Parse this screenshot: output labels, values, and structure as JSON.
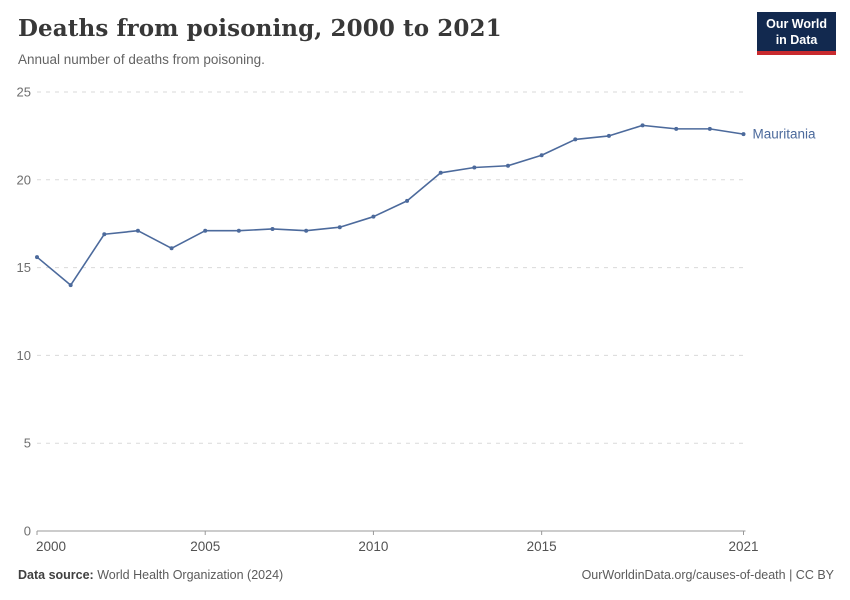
{
  "header": {
    "title": "Deaths from poisoning, 2000 to 2021",
    "subtitle": "Annual number of deaths from poisoning."
  },
  "logo": {
    "line1": "Our World",
    "line2": "in Data",
    "bg_color": "#12294F",
    "accent_color": "#C82A2E"
  },
  "chart_data": {
    "type": "line",
    "title": "Deaths from poisoning, 2000 to 2021",
    "xlabel": "",
    "ylabel": "",
    "x": [
      2000,
      2001,
      2002,
      2003,
      2004,
      2005,
      2006,
      2007,
      2008,
      2009,
      2010,
      2011,
      2012,
      2013,
      2014,
      2015,
      2016,
      2017,
      2018,
      2019,
      2020,
      2021
    ],
    "series": [
      {
        "name": "Mauritania",
        "color": "#4C6A9C",
        "values": [
          15.6,
          14.0,
          16.9,
          17.1,
          16.1,
          17.1,
          17.1,
          17.2,
          17.1,
          17.3,
          17.9,
          18.8,
          20.4,
          20.7,
          20.8,
          21.4,
          22.3,
          22.5,
          23.1,
          22.9,
          22.9,
          22.6
        ]
      }
    ],
    "ylim": [
      0,
      25
    ],
    "yticks": [
      0,
      5,
      10,
      15,
      20,
      25
    ],
    "xticks": [
      2000,
      2005,
      2010,
      2015,
      2021
    ],
    "grid": "horizontal-dashed",
    "legend": "end-of-line-label",
    "grid_color": "#dadada",
    "axis_color": "#999999",
    "ytick_label_color": "#6e6e6e",
    "xtick_label_color": "#525252"
  },
  "footer": {
    "datasource_label": "Data source:",
    "datasource_value": " World Health Organization (2024)",
    "credit": "OurWorldinData.org/causes-of-death | CC BY"
  }
}
